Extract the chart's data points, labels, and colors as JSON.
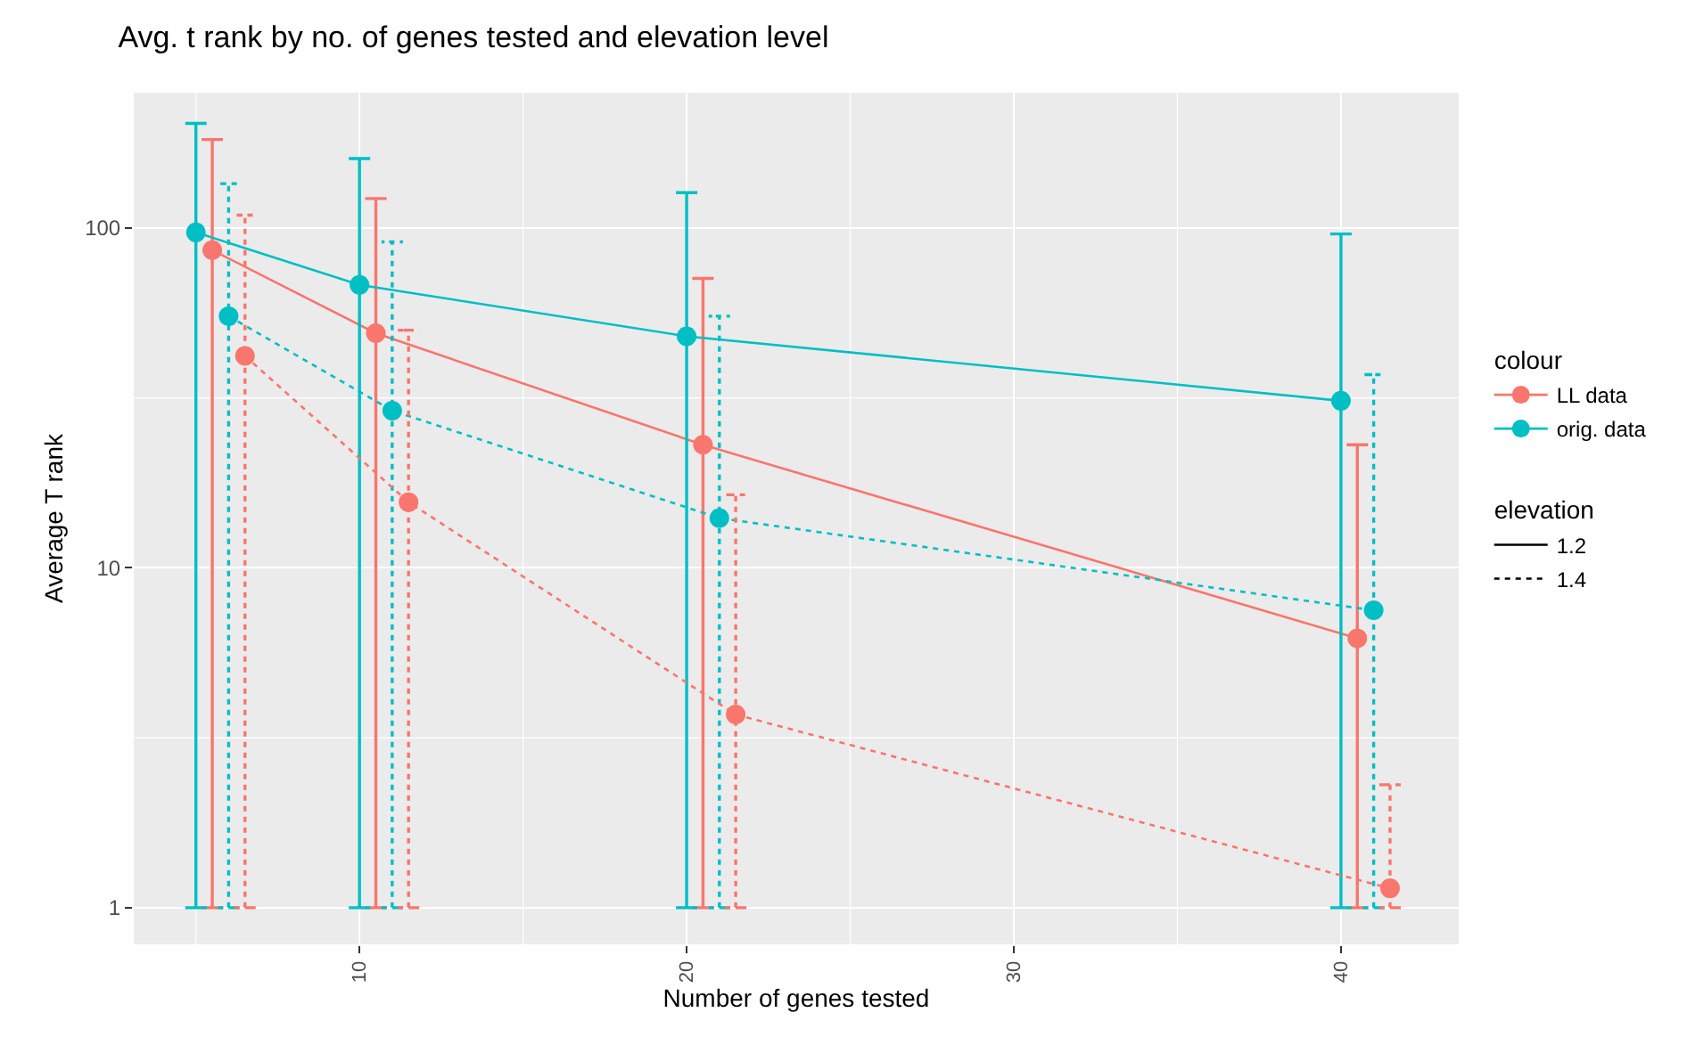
{
  "chart_data": {
    "type": "line",
    "title": "Avg. t rank by no. of genes tested and elevation level",
    "xlabel": "Number of genes tested",
    "ylabel": "Average T rank",
    "legend_title": [
      "colour",
      "elevation"
    ],
    "annotations": [
      "1.2",
      "1.4"
    ],
    "log": "y",
    "grid": true,
    "legend": "right",
    "marker": "circle",
    "xlim": [
      3.1,
      43.6
    ],
    "xticks": [
      10,
      20,
      30,
      40
    ],
    "ylim": [
      0.78,
      250
    ],
    "yticks": [
      1,
      10,
      100
    ],
    "series": [
      {
        "name": "LL data",
        "line_style": "solid",
        "color": "#f8766d",
        "x": [
          5.5,
          10.5,
          20.5,
          40.5
        ],
        "values": [
          86,
          49,
          23,
          6.2
        ],
        "errors": [
          [
            1,
            182
          ],
          [
            1,
            122
          ],
          [
            1,
            71
          ],
          [
            1,
            23
          ]
        ]
      },
      {
        "name": "orig. data",
        "line_style": "solid",
        "color": "#00bfc4",
        "x": [
          5,
          10,
          20,
          40
        ],
        "values": [
          97,
          68,
          48,
          31
        ],
        "errors": [
          [
            1,
            203
          ],
          [
            1,
            160
          ],
          [
            1,
            127
          ],
          [
            1,
            96
          ]
        ]
      },
      {
        "line_style": "dotted",
        "color": "#00bfc4",
        "x": [
          6,
          11,
          21,
          41
        ],
        "values": [
          55,
          29,
          14,
          7.5
        ],
        "errors": [
          [
            1,
            135
          ],
          [
            1,
            91
          ],
          [
            1,
            55
          ],
          [
            1,
            37
          ]
        ]
      },
      {
        "line_style": "dotted",
        "color": "#f8766d",
        "x": [
          6.5,
          11.5,
          21.5,
          41.5
        ],
        "values": [
          42,
          15.6,
          3.7,
          1.14
        ],
        "errors": [
          [
            1,
            109
          ],
          [
            1,
            50
          ],
          [
            1,
            16.4
          ],
          [
            1,
            2.3
          ]
        ]
      }
    ]
  }
}
